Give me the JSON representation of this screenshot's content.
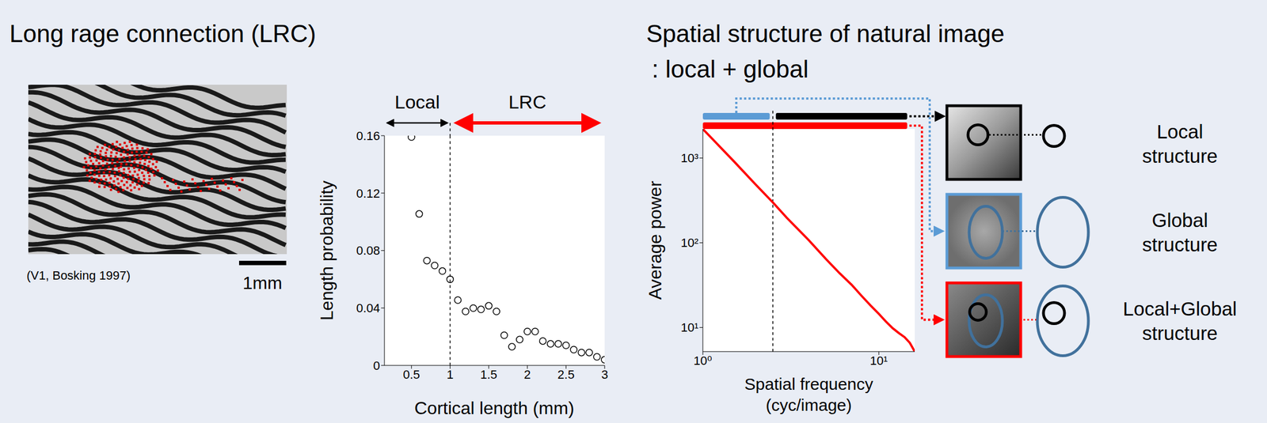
{
  "chart_data": [
    {
      "type": "scatter",
      "title": "Long rage connection (LRC)",
      "image_caption": "(V1, Bosking 1997)",
      "scale_bar_label": "1mm",
      "x_label": "Cortical length (mm)",
      "y_label": "Length probability",
      "x": [
        0.5,
        0.6,
        0.7,
        0.8,
        0.9,
        1.0,
        1.1,
        1.2,
        1.3,
        1.4,
        1.5,
        1.6,
        1.7,
        1.8,
        1.9,
        2.0,
        2.1,
        2.2,
        2.3,
        2.4,
        2.5,
        2.6,
        2.7,
        2.8,
        2.9,
        3.0
      ],
      "values": [
        0.159,
        0.1055,
        0.073,
        0.0696,
        0.0657,
        0.06,
        0.0455,
        0.0376,
        0.0399,
        0.039,
        0.0415,
        0.0376,
        0.021,
        0.013,
        0.018,
        0.0236,
        0.0236,
        0.017,
        0.015,
        0.015,
        0.014,
        0.011,
        0.009,
        0.009,
        0.006,
        0.004
      ],
      "color": "#000000",
      "marker": "open_circle",
      "xlim": [
        0.15,
        3
      ],
      "xticks": [
        0.5,
        1,
        1.5,
        2,
        2.5,
        3
      ],
      "ylim": [
        0,
        0.16
      ],
      "yticks": [
        0,
        0.04,
        0.08,
        0.12,
        0.16
      ],
      "grid": false,
      "vline": 1,
      "regions": [
        {
          "label": "Local",
          "from": 0.15,
          "to": 1,
          "color": "#000000"
        },
        {
          "label": "LRC",
          "from": 1,
          "to": 3,
          "color": "#ff0000"
        }
      ]
    },
    {
      "type": "line",
      "title": "Spatial structure of natural image",
      "subtitle": ": local + global",
      "x_label": "Spatial frequency (cyc/image)",
      "y_label": "Average power",
      "log": true,
      "x": [
        1,
        1.5,
        2,
        2.5,
        3,
        4,
        5,
        6,
        7,
        8,
        9,
        10,
        11,
        12,
        13,
        14,
        15,
        16
      ],
      "values": [
        2200,
        916,
        485,
        299,
        197,
        107,
        64.5,
        43.5,
        32,
        23.5,
        18.1,
        14.5,
        11.7,
        9.8,
        8.6,
        7.7,
        6.6,
        5.2
      ],
      "color": "#ff0000",
      "xlim": [
        1,
        16
      ],
      "xticks": [
        {
          "value": 1,
          "label": "10⁰"
        },
        {
          "value": 10,
          "label": "10¹"
        }
      ],
      "ylim": [
        5.2,
        2200
      ],
      "yticks": [
        {
          "value": 10,
          "label": "10¹"
        },
        {
          "value": 100,
          "label": "10²"
        },
        {
          "value": 1000,
          "label": "10³"
        }
      ],
      "grid": false,
      "vline": 2.5,
      "bands": [
        {
          "label": "Local structure",
          "from": 2.6,
          "to": 14.5,
          "color": "#000000"
        },
        {
          "label": "Global structure",
          "from": 1,
          "to": 2.4,
          "color": "#5b9bd5"
        },
        {
          "label": "Local+Global structure",
          "from": 1,
          "to": 14.5,
          "color": "#ff0000"
        }
      ]
    }
  ]
}
